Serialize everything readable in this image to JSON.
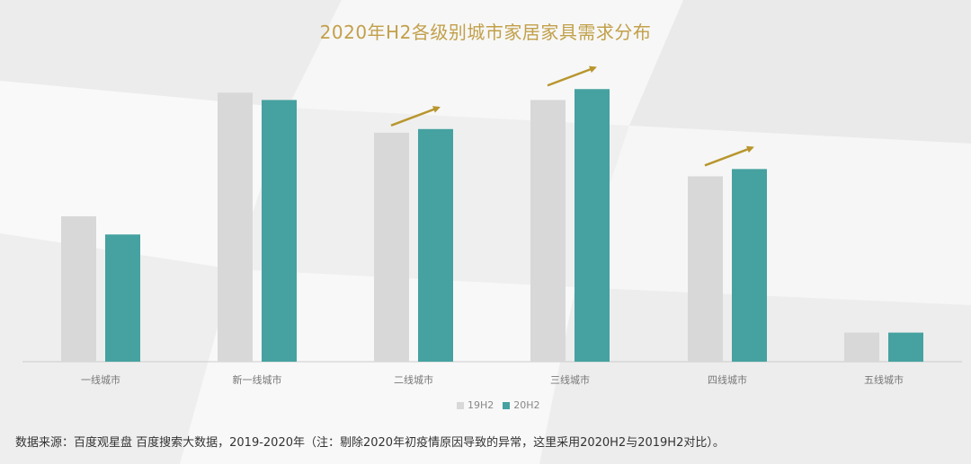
{
  "chart_data": {
    "type": "bar",
    "title": "2020年H2各级别城市家居家具需求分布",
    "categories": [
      "一线城市",
      "新一线城市",
      "二线城市",
      "三线城市",
      "四线城市",
      "五线城市"
    ],
    "series": [
      {
        "name": "19H2",
        "color": "#d9d8d8",
        "values": [
          40,
          74,
          63,
          72,
          51,
          8
        ]
      },
      {
        "name": "20H2",
        "color": "#45a2a0",
        "values": [
          35,
          72,
          64,
          75,
          53,
          8
        ]
      }
    ],
    "ylim": [
      0,
      80
    ],
    "xlabel": "",
    "ylabel": "",
    "grid": false,
    "legend_position": "bottom",
    "growth_arrows": [
      "二线城市",
      "三线城市",
      "四线城市"
    ],
    "arrow_color": "#b8962e"
  },
  "footer": {
    "source_note": "数据来源：百度观星盘  百度搜索大数据，2019-2020年（注：剔除2020年初疫情原因导致的异常，这里采用2020H2与2019H2对比）。"
  }
}
